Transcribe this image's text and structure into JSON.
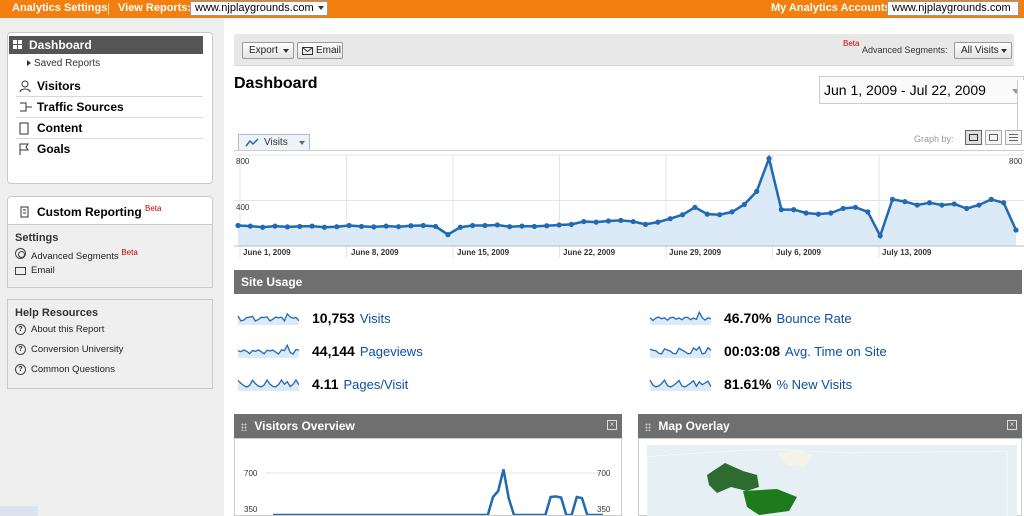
{
  "topbar": {
    "analytics_settings": "Analytics Settings",
    "view_reports_label": "View Reports:",
    "view_reports_value": "www.njplaygrounds.com",
    "my_accounts_label": "My Analytics Accounts:",
    "my_accounts_value": "www.njplaygrounds.com"
  },
  "sidebar": {
    "dashboard": "Dashboard",
    "saved_reports": "Saved Reports",
    "items": [
      {
        "label": "Visitors",
        "icon": "person-icon"
      },
      {
        "label": "Traffic Sources",
        "icon": "traffic-icon"
      },
      {
        "label": "Content",
        "icon": "page-icon"
      },
      {
        "label": "Goals",
        "icon": "flag-icon"
      }
    ],
    "custom_reporting": "Custom Reporting",
    "beta": "Beta",
    "settings": {
      "title": "Settings",
      "advanced_segments": "Advanced Segments",
      "email": "Email"
    },
    "help": {
      "title": "Help Resources",
      "links": [
        "About this Report",
        "Conversion University",
        "Common Questions"
      ]
    }
  },
  "toolbar": {
    "export": "Export",
    "email": "Email",
    "beta": "Beta",
    "advanced_segments_label": "Advanced Segments:",
    "segment_value": "All Visits"
  },
  "main": {
    "title": "Dashboard",
    "date_range": "Jun 1, 2009 - Jul 22, 2009",
    "metric_tab": "Visits",
    "graph_by": "Graph by:"
  },
  "chart_data": [
    {
      "type": "line",
      "series": [
        {
          "values": [
            180,
            175,
            165,
            175,
            168,
            172,
            175,
            165,
            170,
            180,
            172,
            168,
            175,
            170,
            178,
            180,
            172,
            100,
            165,
            180,
            180,
            185,
            170,
            175,
            172,
            178,
            185,
            190,
            215,
            210,
            220,
            225,
            215,
            190,
            210,
            240,
            275,
            340,
            280,
            275,
            300,
            365,
            480,
            770,
            320,
            320,
            290,
            280,
            290,
            330,
            340,
            300,
            90,
            410,
            390,
            360,
            380,
            360,
            370,
            330,
            360,
            410,
            380,
            140
          ]
        }
      ],
      "x_tick_labels": [
        "June 1, 2009",
        "June 8, 2009",
        "June 15, 2009",
        "June 22, 2009",
        "June 29, 2009",
        "July 6, 2009",
        "July 13, 2009"
      ],
      "y_tick_labels": [
        "800",
        "400"
      ],
      "ylim": [
        0,
        800
      ],
      "colors": {
        "line": "#1f6ab3",
        "fill": "#dceaf7"
      }
    },
    {
      "type": "line",
      "series": [
        {
          "values": [
            0,
            0,
            0,
            0,
            0,
            0,
            0,
            0,
            0,
            0,
            0,
            0,
            0,
            0,
            0,
            0,
            0,
            0,
            0,
            0,
            0,
            0,
            0,
            0,
            0,
            0,
            0,
            0,
            0,
            0,
            0,
            0,
            0,
            0,
            0,
            0,
            0,
            0,
            0,
            0,
            0,
            0,
            300,
            400,
            760,
            280,
            0,
            0,
            0,
            0,
            0,
            0,
            0,
            300,
            310,
            290,
            0,
            0,
            300,
            280,
            0,
            0,
            0,
            0
          ]
        }
      ],
      "y_tick_labels": [
        "700",
        "350"
      ],
      "ylim": [
        0,
        700
      ],
      "colors": {
        "line": "#1f6ab3"
      }
    }
  ],
  "site_usage": {
    "title": "Site Usage",
    "metrics": [
      {
        "value": "10,753",
        "label": "Visits"
      },
      {
        "value": "46.70%",
        "label": "Bounce Rate"
      },
      {
        "value": "44,144",
        "label": "Pageviews"
      },
      {
        "value": "00:03:08",
        "label": "Avg. Time on Site"
      },
      {
        "value": "4.11",
        "label": "Pages/Visit"
      },
      {
        "value": "81.61%",
        "label": "% New Visits"
      }
    ]
  },
  "visitors_overview": {
    "title": "Visitors Overview"
  },
  "map_overlay": {
    "title": "Map Overlay"
  },
  "icons": {
    "close": "close-icon",
    "dashboard": "dashboard-grid-icon",
    "graph_by_options": [
      "line-chart-icon",
      "motion-chart-icon",
      "table-icon"
    ]
  },
  "colors": {
    "topbar": "#f37f0e",
    "section_header": "#6f6f6f",
    "link": "#0e4fa3",
    "line": "#1f6ab3"
  }
}
